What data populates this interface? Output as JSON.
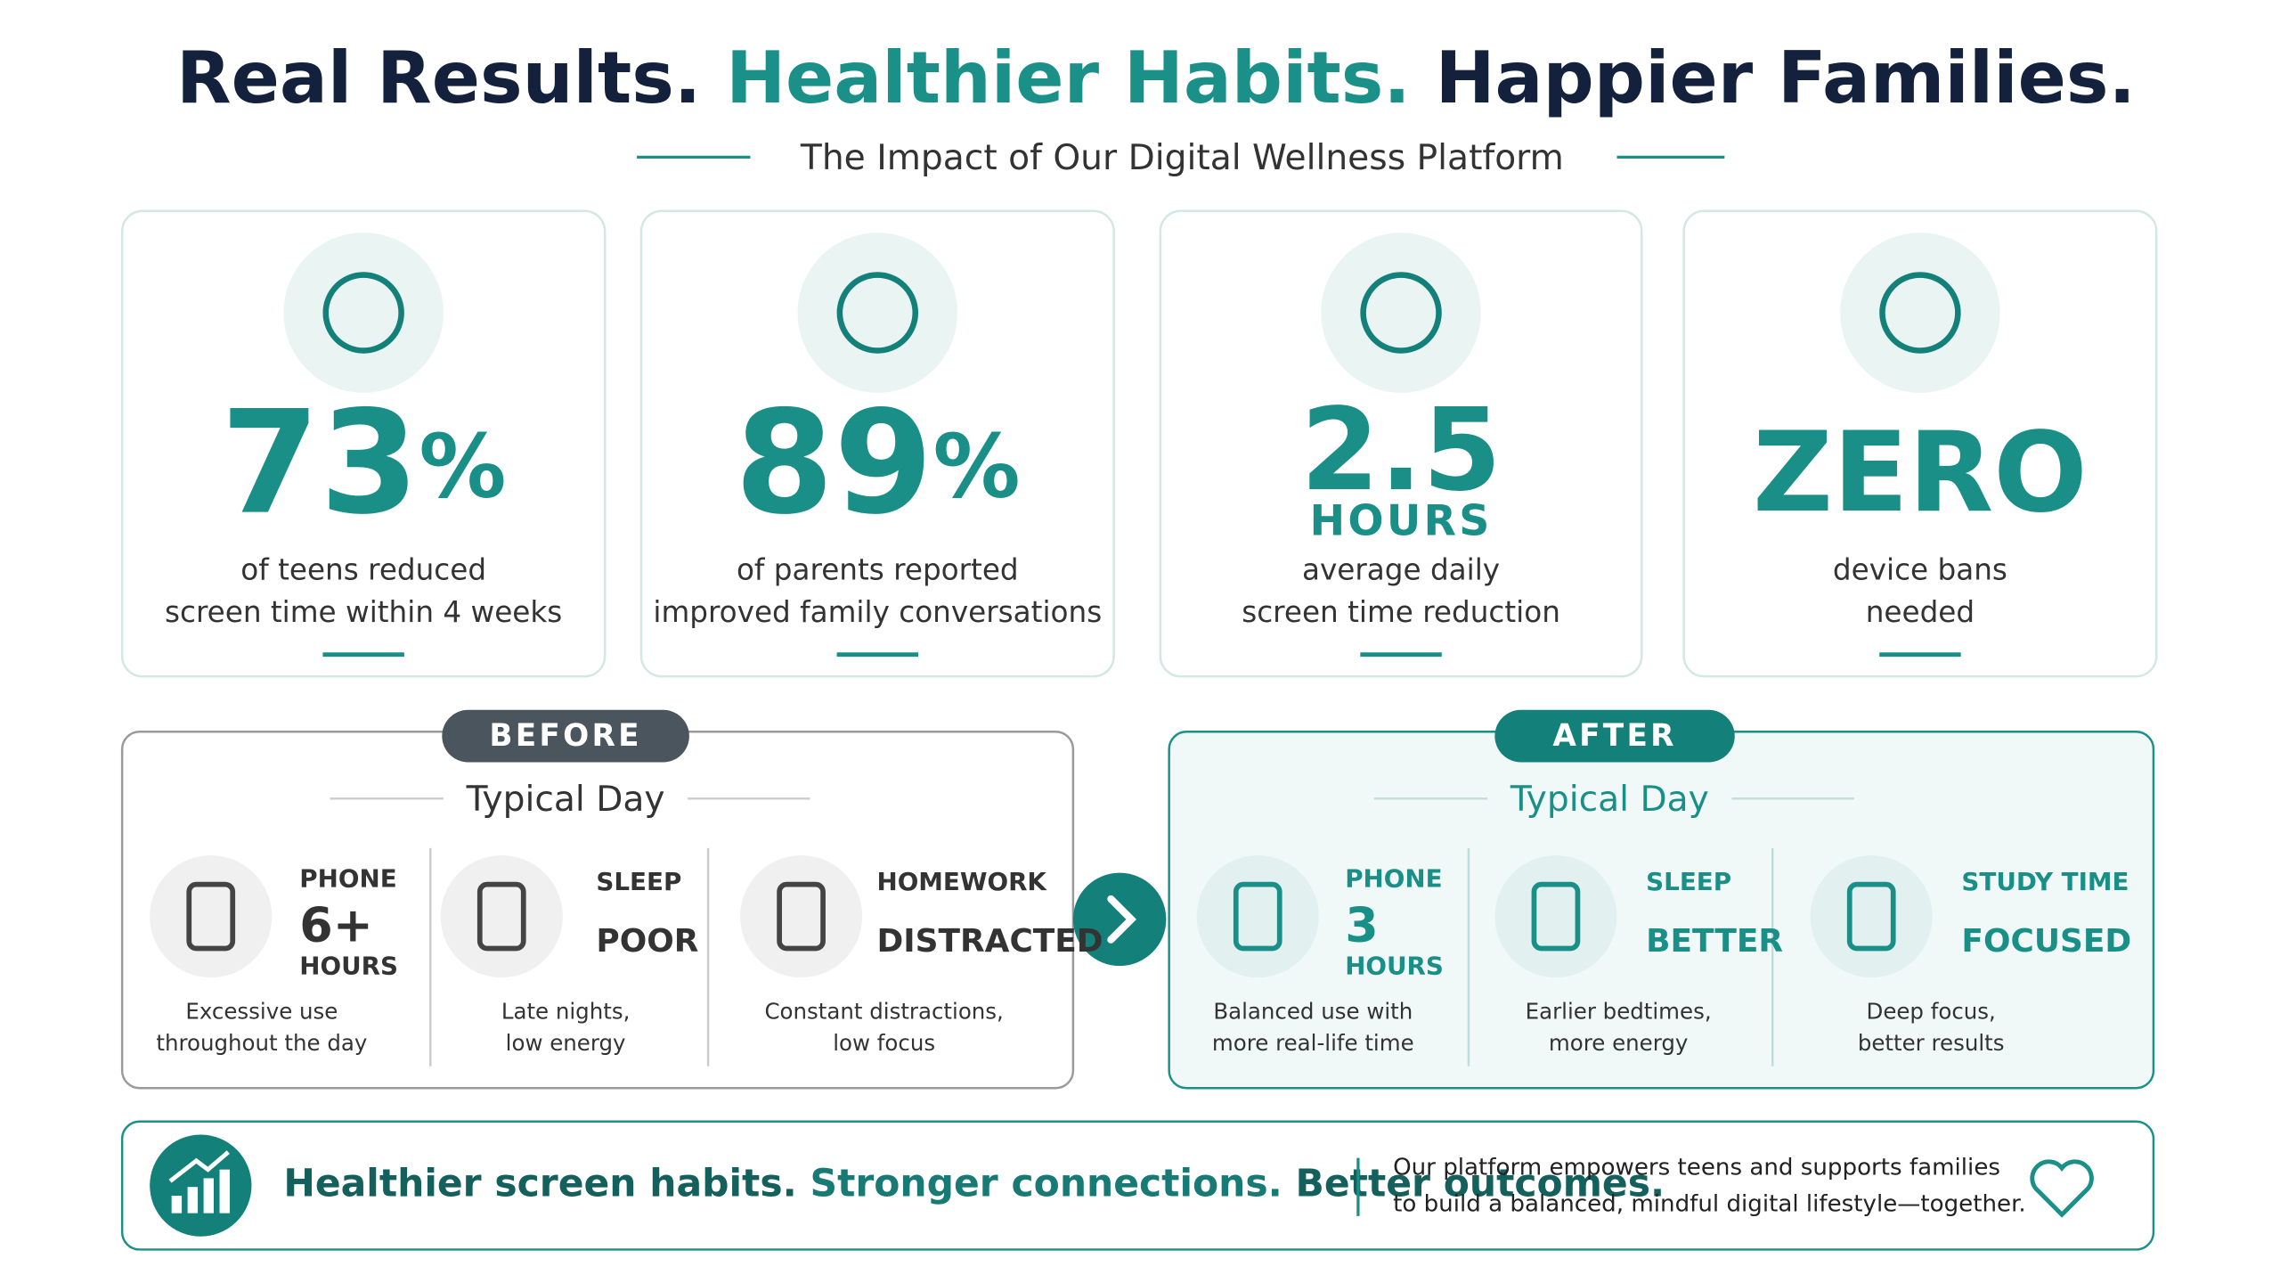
{
  "header": {
    "title": [
      "Real Results.",
      "Healthier Habits.",
      "Happier Families."
    ],
    "subtitle": "The Impact of Our Digital Wellness Platform"
  },
  "stats": [
    {
      "number": "73",
      "unit": "%",
      "lines": [
        "of teens reduced",
        "screen time within 4 weeks"
      ]
    },
    {
      "number": "89",
      "unit": "%",
      "lines": [
        "of parents reported",
        "improved family conversations"
      ]
    },
    {
      "number": "2.5",
      "unit": "HOURS",
      "lines": [
        "average daily",
        "screen time reduction"
      ]
    },
    {
      "number": "ZERO",
      "lines": [
        "device bans",
        "needed"
      ]
    }
  ],
  "before": {
    "badge": "BEFORE",
    "heading": "Typical Day",
    "items": [
      {
        "label": "PHONE",
        "value": "6+",
        "unit": "HOURS",
        "lines": [
          "Excessive use",
          "throughout the day"
        ]
      },
      {
        "label": "SLEEP",
        "value": "POOR",
        "lines": [
          "Late nights,",
          "low energy"
        ]
      },
      {
        "label": "HOMEWORK",
        "value": "DISTRACTED",
        "lines": [
          "Constant distractions,",
          "low focus"
        ]
      }
    ]
  },
  "after": {
    "badge": "AFTER",
    "heading": "Typical Day",
    "items": [
      {
        "label": "PHONE",
        "value": "3",
        "unit": "HOURS",
        "lines": [
          "Balanced use with",
          "more real-life time"
        ]
      },
      {
        "label": "SLEEP",
        "value": "BETTER",
        "lines": [
          "Earlier bedtimes,",
          "more energy"
        ]
      },
      {
        "label": "STUDY TIME",
        "value": "FOCUSED",
        "lines": [
          "Deep focus,",
          "better results"
        ]
      }
    ]
  },
  "footer": {
    "tagline": [
      "Healthier screen habits.",
      "Stronger connections.",
      "Better outcomes."
    ],
    "text": [
      "Our platform empowers teens and supports families",
      "to build a balanced, mindful digital lifestyle—together."
    ]
  }
}
